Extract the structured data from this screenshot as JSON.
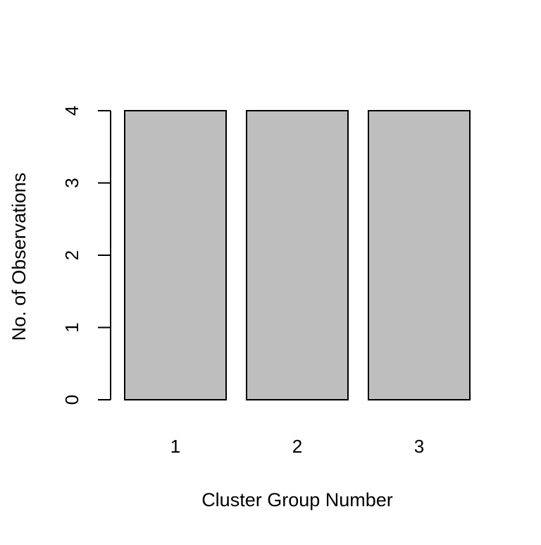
{
  "chart_data": {
    "type": "bar",
    "categories": [
      "1",
      "2",
      "3"
    ],
    "values": [
      4,
      4,
      4
    ],
    "title": "",
    "xlabel": "Cluster Group Number",
    "ylabel": "No. of Observations",
    "ylim": [
      0,
      4
    ],
    "yticks": [
      "0",
      "1",
      "2",
      "3",
      "4"
    ],
    "grid": false,
    "legend": "none",
    "bar_fill": "#bebebe",
    "bar_stroke": "#000000"
  }
}
